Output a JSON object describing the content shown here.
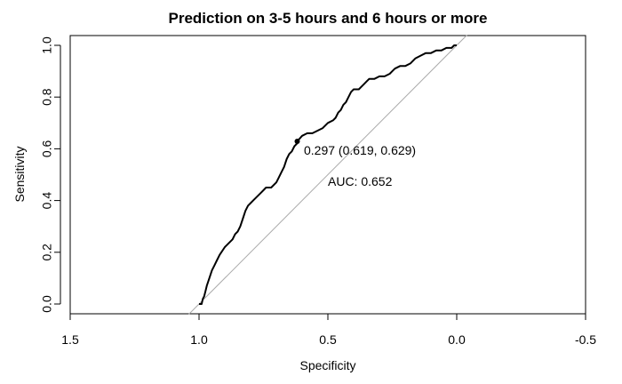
{
  "chart_data": {
    "type": "line",
    "title": "Prediction on 3-5 hours and 6 hours or more",
    "xlabel": "Specificity",
    "ylabel": "Sensitivity",
    "xlim": [
      1.5,
      -0.5
    ],
    "ylim": [
      0.0,
      1.0
    ],
    "x_ticks": [
      "1.5",
      "1.0",
      "0.5",
      "0.0",
      "-0.5"
    ],
    "y_ticks": [
      "0.0",
      "0.2",
      "0.4",
      "0.6",
      "0.8",
      "1.0"
    ],
    "grid": false,
    "series": [
      {
        "x": [
          1.0,
          0.99,
          0.985,
          0.98,
          0.975,
          0.97,
          0.96,
          0.95,
          0.94,
          0.93,
          0.92,
          0.9,
          0.88,
          0.87,
          0.86,
          0.85,
          0.84,
          0.83,
          0.82,
          0.81,
          0.8,
          0.79,
          0.78,
          0.77,
          0.76,
          0.75,
          0.74,
          0.72,
          0.7,
          0.69,
          0.68,
          0.67,
          0.66,
          0.65,
          0.64,
          0.63,
          0.62,
          0.619,
          0.6,
          0.58,
          0.56,
          0.54,
          0.52,
          0.5,
          0.48,
          0.47,
          0.46,
          0.45,
          0.44,
          0.43,
          0.42,
          0.41,
          0.4,
          0.39,
          0.38,
          0.37,
          0.36,
          0.35,
          0.34,
          0.32,
          0.3,
          0.28,
          0.26,
          0.25,
          0.24,
          0.22,
          0.2,
          0.18,
          0.16,
          0.14,
          0.12,
          0.1,
          0.08,
          0.06,
          0.04,
          0.02,
          0.01,
          0.0
        ],
        "y": [
          0.0,
          0.0,
          0.02,
          0.03,
          0.05,
          0.07,
          0.1,
          0.13,
          0.15,
          0.17,
          0.19,
          0.22,
          0.24,
          0.25,
          0.27,
          0.28,
          0.3,
          0.33,
          0.36,
          0.38,
          0.39,
          0.4,
          0.41,
          0.42,
          0.43,
          0.44,
          0.45,
          0.45,
          0.47,
          0.49,
          0.51,
          0.53,
          0.56,
          0.58,
          0.59,
          0.61,
          0.62,
          0.629,
          0.65,
          0.66,
          0.66,
          0.67,
          0.68,
          0.7,
          0.71,
          0.72,
          0.74,
          0.75,
          0.77,
          0.78,
          0.8,
          0.82,
          0.83,
          0.83,
          0.83,
          0.84,
          0.85,
          0.86,
          0.87,
          0.87,
          0.88,
          0.88,
          0.89,
          0.9,
          0.91,
          0.92,
          0.92,
          0.93,
          0.95,
          0.96,
          0.97,
          0.97,
          0.98,
          0.98,
          0.99,
          0.99,
          1.0,
          1.0
        ],
        "color": "#000000"
      }
    ],
    "reference_line": {
      "x": [
        1.0,
        0.0
      ],
      "y": [
        0.0,
        1.0
      ],
      "color": "#aaaaaa"
    },
    "threshold_point": {
      "x": 0.619,
      "y": 0.629,
      "label": "0.297 (0.619, 0.629)"
    },
    "auc_label": "AUC: 0.652"
  }
}
